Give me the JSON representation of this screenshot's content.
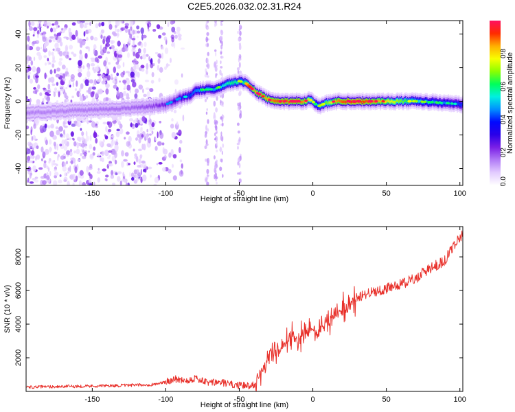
{
  "title": "C2E5.2026.032.02.31.R24",
  "chart_data": [
    {
      "type": "heatmap",
      "xlabel": "Height of straight line (km)",
      "ylabel": "Frequency (Hz)",
      "xlim": [
        -195,
        102
      ],
      "ylim": [
        -50,
        48
      ],
      "x_ticks": [
        -150,
        -100,
        -50,
        0,
        50,
        100
      ],
      "y_ticks": [
        -40,
        -20,
        0,
        20,
        40
      ],
      "colorbar": {
        "label": "Normalized spectral amplitude",
        "range": [
          0,
          1
        ],
        "ticks": [
          0.0,
          0.2,
          0.4,
          0.6,
          0.8
        ],
        "tick_labels": [
          "0.0",
          "0.2",
          "0.4",
          "0.6",
          "0.8"
        ],
        "colors": [
          "#ffffff",
          "#e3ccff",
          "#b27cf6",
          "#7a1fe6",
          "#2a00e8",
          "#0008ff",
          "#0090ff",
          "#00f0e0",
          "#00ff5a",
          "#8cff00",
          "#f8ff00",
          "#ffae00",
          "#ff2a00",
          "#ff1060"
        ]
      },
      "ridge": {
        "x": [
          -195,
          -175,
          -150,
          -125,
          -110,
          -100,
          -95,
          -90,
          -85,
          -80,
          -75,
          -70,
          -65,
          -60,
          -55,
          -50,
          -46,
          -42,
          -38,
          -34,
          -30,
          -26,
          -22,
          -18,
          -14,
          -10,
          -6,
          -2,
          0,
          2,
          4,
          6,
          10,
          15,
          20,
          30,
          50,
          70,
          90,
          102
        ],
        "freq": [
          -7,
          -6,
          -5,
          -4,
          -3,
          -2,
          0,
          2,
          3,
          6,
          7,
          7,
          8,
          10,
          11,
          12,
          11,
          8,
          5,
          3,
          1,
          0,
          0,
          0,
          0,
          0,
          0,
          1,
          0,
          -2,
          -3,
          -2,
          -1,
          0,
          0,
          0,
          0,
          0,
          -1,
          -2
        ],
        "amplitude": [
          0.15,
          0.15,
          0.16,
          0.17,
          0.2,
          0.25,
          0.3,
          0.35,
          0.4,
          0.45,
          0.48,
          0.45,
          0.5,
          0.55,
          0.6,
          0.55,
          0.6,
          0.85,
          0.85,
          0.85,
          0.85,
          0.9,
          0.9,
          0.9,
          0.9,
          0.9,
          0.85,
          0.7,
          0.6,
          0.5,
          0.55,
          0.6,
          0.7,
          0.85,
          0.9,
          0.95,
          0.8,
          0.55,
          0.45,
          0.4
        ]
      },
      "noise_scatter_region": {
        "x_from": -195,
        "x_to": -100,
        "description": "scattered purple noise across all frequencies"
      }
    },
    {
      "type": "line",
      "xlabel": "Height of straight line (km)",
      "ylabel": "SNR (10 * v/v)",
      "xlim": [
        -195,
        102
      ],
      "ylim": [
        0,
        9800
      ],
      "x_ticks": [
        -150,
        -100,
        -50,
        0,
        50,
        100
      ],
      "y_ticks": [
        2000,
        4000,
        6000,
        8000
      ],
      "color": "#e8302a",
      "series": [
        {
          "name": "SNR",
          "x": [
            -195,
            -180,
            -165,
            -150,
            -130,
            -110,
            -100,
            -95,
            -90,
            -85,
            -80,
            -75,
            -70,
            -65,
            -60,
            -55,
            -50,
            -45,
            -40,
            -37,
            -35,
            -32,
            -28,
            -25,
            -22,
            -18,
            -15,
            -12,
            -8,
            -5,
            -2,
            0,
            3,
            6,
            10,
            15,
            20,
            25,
            30,
            40,
            50,
            60,
            70,
            75,
            80,
            90,
            96,
            100,
            102
          ],
          "y": [
            250,
            280,
            300,
            320,
            350,
            400,
            550,
            750,
            700,
            650,
            800,
            600,
            500,
            550,
            500,
            400,
            350,
            330,
            420,
            700,
            1300,
            1800,
            2300,
            2400,
            2600,
            2800,
            3300,
            3100,
            3200,
            3400,
            3500,
            3700,
            3500,
            3800,
            4100,
            4500,
            4900,
            5300,
            5600,
            5900,
            6100,
            6400,
            6700,
            7100,
            7300,
            7800,
            8700,
            9200,
            9300
          ]
        }
      ]
    }
  ]
}
